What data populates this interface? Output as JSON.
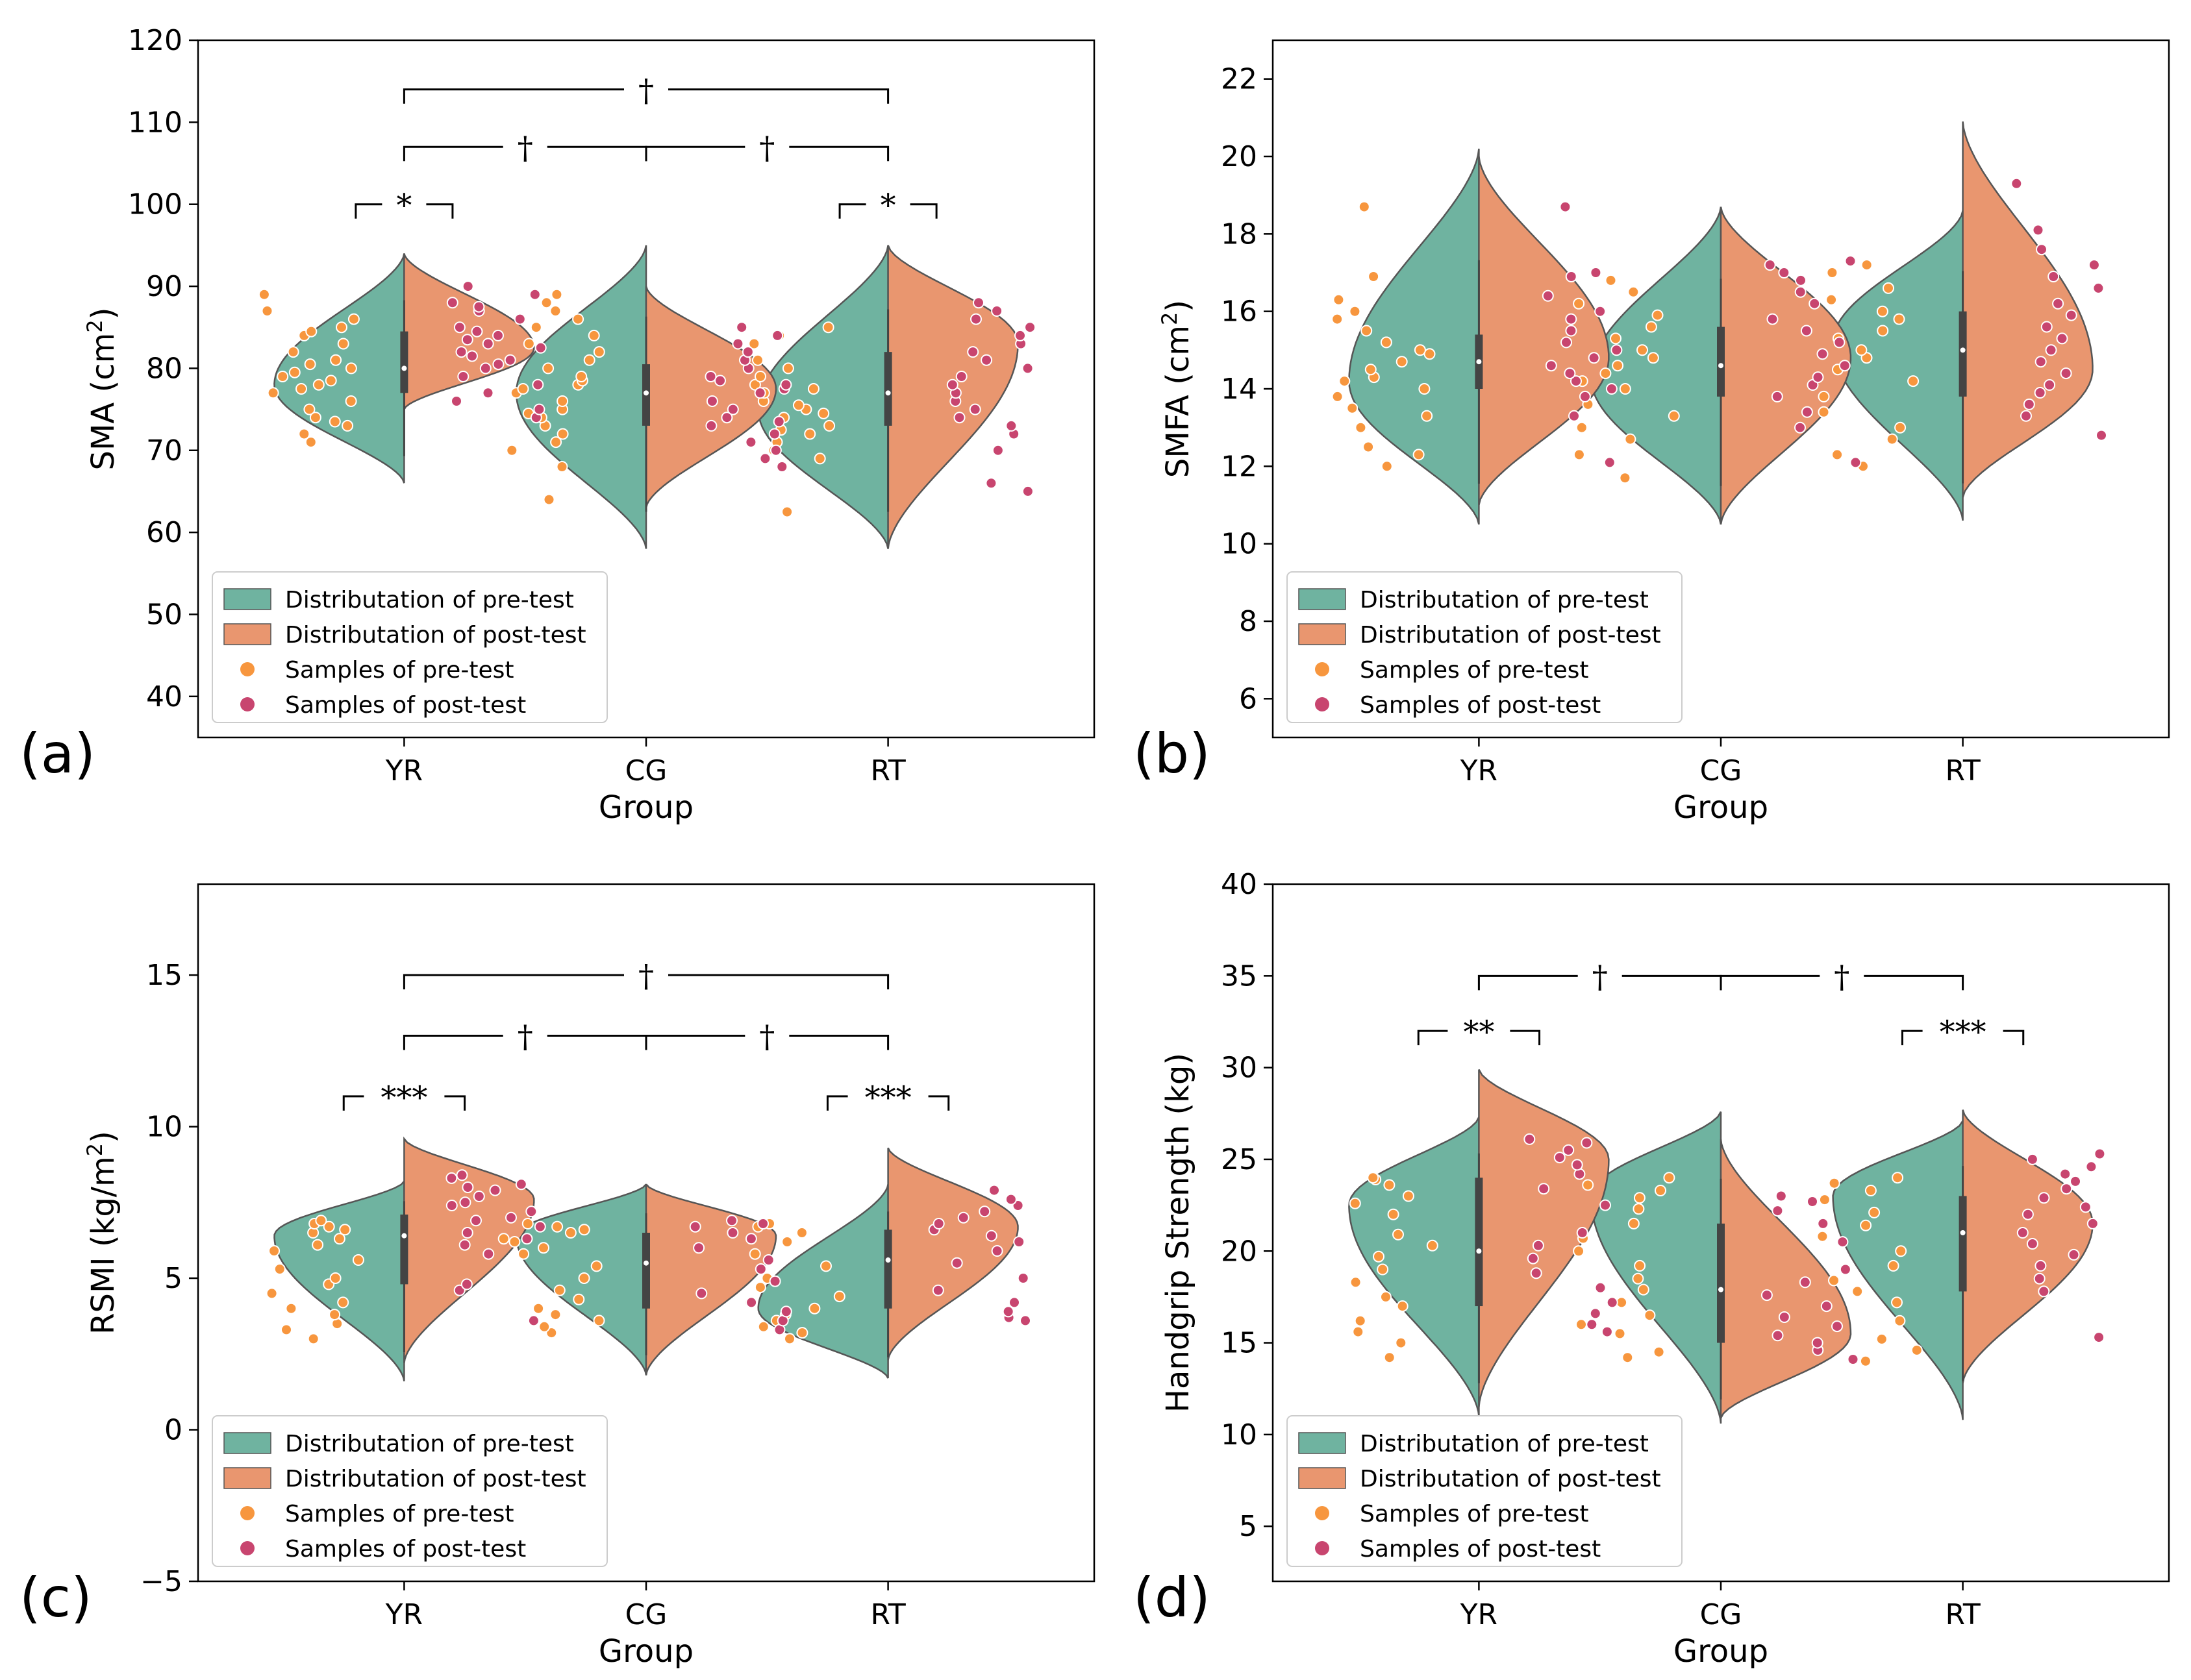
{
  "colors": {
    "pre": "#6fb3a0",
    "post": "#e9966f",
    "pre_dot": "#f7963e",
    "post_dot": "#c8456f",
    "edge": "#555555",
    "box": "#444444"
  },
  "legend": {
    "pre_dist": "Distributation of pre-test",
    "post_dist": "Distributation of post-test",
    "pre_samples": "Samples of pre-test",
    "post_samples": "Samples of post-test"
  },
  "chart_data": [
    {
      "type": "violin",
      "panel_label": "(a)",
      "xlabel": "Group",
      "ylabel_main": "SMA (cm",
      "ylabel_sup": "2",
      "ylabel_end": ")",
      "categories": [
        "YR",
        "CG",
        "RT"
      ],
      "ylim": [
        35,
        120
      ],
      "yticks": [
        40,
        50,
        60,
        70,
        80,
        90,
        100,
        110,
        120
      ],
      "legend_position": "lower-left",
      "series": [
        {
          "name": "pre-test",
          "groups": [
            {
              "min": 66,
              "max": 94,
              "peak": 78,
              "q1": 77,
              "median": 80,
              "q3": 84.5,
              "points": [
                71,
                72,
                73,
                73.5,
                74,
                75,
                76,
                77,
                77.5,
                78,
                78.5,
                79,
                79.5,
                80,
                80.5,
                81,
                82,
                83,
                84,
                84.5,
                85,
                86,
                87,
                89
              ]
            },
            {
              "min": 58,
              "max": 95,
              "peak": 77,
              "q1": 73,
              "median": 77,
              "q3": 80.5,
              "points": [
                64,
                68,
                70,
                71,
                72,
                73,
                74,
                74.5,
                75,
                76,
                77,
                77.5,
                78,
                78.5,
                79,
                80,
                81,
                82,
                83,
                84,
                85,
                86,
                87,
                88,
                89
              ]
            },
            {
              "min": 58,
              "max": 95,
              "peak": 75,
              "q1": 73,
              "median": 77,
              "q3": 82,
              "points": [
                62.5,
                69,
                70,
                71,
                72,
                72.5,
                73,
                74,
                74.5,
                75,
                75.5,
                76,
                77,
                77.5,
                78,
                79,
                80,
                81,
                83,
                84,
                85
              ]
            }
          ]
        },
        {
          "name": "post-test",
          "groups": [
            {
              "min": 75,
              "max": 94,
              "peak": 82.5,
              "q1": 77,
              "median": 80,
              "q3": 84.5,
              "points": [
                74,
                75,
                76,
                77,
                78,
                79,
                80,
                80.5,
                81,
                81.5,
                82,
                82.5,
                83,
                83.5,
                84,
                84.5,
                85,
                86,
                87,
                87.5,
                88,
                89,
                90
              ]
            },
            {
              "min": 63,
              "max": 90,
              "peak": 77.5,
              "q1": 73,
              "median": 77,
              "q3": 80.5,
              "points": [
                68,
                69,
                70,
                71,
                72,
                73,
                73.5,
                74,
                75,
                76,
                77,
                77.5,
                78,
                78.5,
                79,
                80,
                81,
                82,
                83,
                84,
                85
              ]
            },
            {
              "min": 58,
              "max": 95,
              "peak": 83,
              "q1": 73,
              "median": 77,
              "q3": 82,
              "points": [
                65,
                66,
                70,
                72,
                73,
                74,
                75,
                76,
                77,
                78,
                79,
                80,
                81,
                82,
                83,
                84,
                85,
                86,
                87,
                88
              ]
            }
          ]
        }
      ],
      "annotations": [
        {
          "x1": 0,
          "x2": 1,
          "y": 114,
          "label": "†"
        },
        {
          "x1": 0,
          "x2": 0.5,
          "y": 107,
          "label": "†"
        },
        {
          "x1": 0.5,
          "x2": 1,
          "y": 107,
          "label": "†"
        },
        {
          "x1": -0.1,
          "x2": 0.1,
          "y": 100,
          "label": "*"
        },
        {
          "x1": 0.9,
          "x2": 1.1,
          "y": 100,
          "label": "*"
        }
      ]
    },
    {
      "type": "violin",
      "panel_label": "(b)",
      "xlabel": "Group",
      "ylabel_main": "SMFA (cm",
      "ylabel_sup": "2",
      "ylabel_end": ")",
      "categories": [
        "YR",
        "CG",
        "RT"
      ],
      "ylim": [
        5,
        23
      ],
      "yticks": [
        6,
        8,
        10,
        12,
        14,
        16,
        18,
        20,
        22
      ],
      "legend_position": "lower-left",
      "series": [
        {
          "name": "pre-test",
          "groups": [
            {
              "min": 10.5,
              "max": 20.2,
              "peak": 14.2,
              "q1": 14.0,
              "median": 14.7,
              "q3": 15.4,
              "points": [
                12.0,
                12.3,
                12.5,
                13.0,
                13.3,
                13.5,
                13.8,
                14.0,
                14.2,
                14.3,
                14.5,
                14.7,
                14.9,
                15.0,
                15.2,
                15.5,
                15.8,
                16.0,
                16.3,
                16.9,
                18.7
              ]
            },
            {
              "min": 10.5,
              "max": 18.7,
              "peak": 14.3,
              "q1": 13.8,
              "median": 14.6,
              "q3": 15.6,
              "points": [
                11.7,
                12.3,
                12.7,
                13.0,
                13.3,
                13.6,
                14.0,
                14.2,
                14.4,
                14.6,
                14.8,
                15.0,
                15.3,
                15.6,
                15.9,
                16.2,
                16.5,
                16.8
              ]
            },
            {
              "min": 10.6,
              "max": 18.6,
              "peak": 15.2,
              "q1": 13.8,
              "median": 15.0,
              "q3": 16.0,
              "points": [
                12.0,
                12.3,
                12.7,
                13.0,
                13.4,
                13.8,
                14.2,
                14.5,
                14.8,
                15.0,
                15.3,
                15.5,
                15.8,
                16.0,
                16.3,
                16.6,
                17.0,
                17.2
              ]
            }
          ]
        },
        {
          "name": "post-test",
          "groups": [
            {
              "min": 11.0,
              "max": 20.0,
              "peak": 14.8,
              "q1": 14.0,
              "median": 14.7,
              "q3": 15.4,
              "points": [
                12.1,
                13.3,
                13.8,
                14.0,
                14.2,
                14.4,
                14.6,
                14.8,
                15.0,
                15.2,
                15.5,
                15.8,
                16.0,
                16.4,
                16.9,
                17.0,
                18.7
              ]
            },
            {
              "min": 10.5,
              "max": 18.7,
              "peak": 14.8,
              "q1": 13.8,
              "median": 14.6,
              "q3": 15.6,
              "points": [
                12.1,
                13.0,
                13.4,
                13.8,
                14.1,
                14.3,
                14.6,
                14.9,
                15.2,
                15.5,
                15.8,
                16.2,
                16.5,
                16.8,
                17.0,
                17.2,
                17.3
              ]
            },
            {
              "min": 11.2,
              "max": 20.9,
              "peak": 14.5,
              "q1": 13.8,
              "median": 15.0,
              "q3": 16.0,
              "points": [
                12.8,
                13.3,
                13.6,
                13.9,
                14.1,
                14.4,
                14.7,
                15.0,
                15.3,
                15.6,
                15.9,
                16.2,
                16.6,
                16.9,
                17.2,
                17.6,
                18.1,
                19.3
              ]
            }
          ]
        }
      ],
      "annotations": []
    },
    {
      "type": "violin",
      "panel_label": "(c)",
      "xlabel": "Group",
      "ylabel_main": "RSMI (kg/m",
      "ylabel_sup": "2",
      "ylabel_end": ")",
      "categories": [
        "YR",
        "CG",
        "RT"
      ],
      "ylim": [
        -5,
        18
      ],
      "yticks": [
        -5,
        0,
        5,
        10,
        15
      ],
      "legend_position": "lower-left",
      "series": [
        {
          "name": "pre-test",
          "groups": [
            {
              "min": 1.6,
              "max": 8.2,
              "peak": 6.4,
              "q1": 4.8,
              "median": 6.4,
              "q3": 7.1,
              "points": [
                3.0,
                3.3,
                3.5,
                3.8,
                4.0,
                4.2,
                4.5,
                4.8,
                5.0,
                5.3,
                5.6,
                5.9,
                6.1,
                6.3,
                6.5,
                6.6,
                6.7,
                6.8,
                6.9
              ]
            },
            {
              "min": 1.8,
              "max": 8.1,
              "peak": 6.4,
              "q1": 4.0,
              "median": 5.5,
              "q3": 6.5,
              "points": [
                3.2,
                3.4,
                3.6,
                3.8,
                4.0,
                4.3,
                4.6,
                5.0,
                5.4,
                5.8,
                6.0,
                6.2,
                6.3,
                6.5,
                6.6,
                6.7,
                6.8
              ]
            },
            {
              "min": 1.7,
              "max": 8.1,
              "peak": 4.0,
              "q1": 4.0,
              "median": 5.6,
              "q3": 6.6,
              "points": [
                3.0,
                3.2,
                3.4,
                3.6,
                3.8,
                4.0,
                4.2,
                4.4,
                4.7,
                5.0,
                5.4,
                5.8,
                6.2,
                6.5,
                6.7,
                6.8
              ]
            }
          ]
        },
        {
          "name": "post-test",
          "groups": [
            {
              "min": 2.2,
              "max": 9.6,
              "peak": 7.6,
              "q1": 4.8,
              "median": 6.4,
              "q3": 7.1,
              "points": [
                3.6,
                4.6,
                4.8,
                5.8,
                6.1,
                6.3,
                6.5,
                6.7,
                6.9,
                7.0,
                7.2,
                7.4,
                7.5,
                7.7,
                7.9,
                8.0,
                8.1,
                8.3,
                8.4
              ]
            },
            {
              "min": 1.8,
              "max": 8.1,
              "peak": 6.4,
              "q1": 4.0,
              "median": 5.5,
              "q3": 6.5,
              "points": [
                3.3,
                3.6,
                3.9,
                4.2,
                4.5,
                4.9,
                5.3,
                5.6,
                6.0,
                6.3,
                6.5,
                6.7,
                6.8,
                6.9
              ]
            },
            {
              "min": 2.3,
              "max": 9.3,
              "peak": 6.7,
              "q1": 4.0,
              "median": 5.6,
              "q3": 6.6,
              "points": [
                3.6,
                3.7,
                3.9,
                4.2,
                4.6,
                5.0,
                5.5,
                5.9,
                6.2,
                6.4,
                6.6,
                6.8,
                7.0,
                7.2,
                7.4,
                7.6,
                7.9
              ]
            }
          ]
        }
      ],
      "annotations": [
        {
          "x1": 0,
          "x2": 1,
          "y": 15,
          "label": "†"
        },
        {
          "x1": 0,
          "x2": 0.5,
          "y": 13,
          "label": "†"
        },
        {
          "x1": 0.5,
          "x2": 1,
          "y": 13,
          "label": "†"
        },
        {
          "x1": -0.125,
          "x2": 0.125,
          "y": 11,
          "label": "***"
        },
        {
          "x1": 0.875,
          "x2": 1.125,
          "y": 11,
          "label": "***"
        }
      ]
    },
    {
      "type": "violin",
      "panel_label": "(d)",
      "xlabel": "Group",
      "ylabel_main": "Handgrip Strength (kg)",
      "ylabel_sup": "",
      "ylabel_end": "",
      "categories": [
        "YR",
        "CG",
        "RT"
      ],
      "ylim": [
        2,
        40
      ],
      "yticks": [
        5,
        10,
        15,
        20,
        25,
        30,
        35,
        40
      ],
      "legend_position": "lower-left",
      "series": [
        {
          "name": "pre-test",
          "groups": [
            {
              "min": 11.0,
              "max": 27.3,
              "peak": 22.5,
              "q1": 17.0,
              "median": 20.0,
              "q3": 24.0,
              "points": [
                14.2,
                15.0,
                15.6,
                16.2,
                17.0,
                17.5,
                18.3,
                19.0,
                19.7,
                20.3,
                20.9,
                22.0,
                22.6,
                23.0,
                23.6,
                23.9,
                24.0
              ]
            },
            {
              "min": 10.6,
              "max": 27.6,
              "peak": 23.0,
              "q1": 15.0,
              "median": 17.9,
              "q3": 21.5,
              "points": [
                14.2,
                14.5,
                15.5,
                16.0,
                16.5,
                17.2,
                17.9,
                18.5,
                19.2,
                20.0,
                20.7,
                21.5,
                22.3,
                22.9,
                23.3,
                23.6,
                24.0
              ]
            },
            {
              "min": 10.8,
              "max": 27.1,
              "peak": 23.0,
              "q1": 17.8,
              "median": 21.0,
              "q3": 23.0,
              "points": [
                14.0,
                14.6,
                15.2,
                16.2,
                17.2,
                17.8,
                18.4,
                19.2,
                20.0,
                20.8,
                21.4,
                22.1,
                22.8,
                23.3,
                23.7,
                24.0
              ]
            }
          ]
        },
        {
          "name": "post-test",
          "groups": [
            {
              "min": 11.5,
              "max": 29.9,
              "peak": 25.0,
              "q1": 17.0,
              "median": 20.0,
              "q3": 24.0,
              "points": [
                15.6,
                16.0,
                16.6,
                17.2,
                18.0,
                18.8,
                19.6,
                20.3,
                21.0,
                22.5,
                23.4,
                24.2,
                24.7,
                25.1,
                25.5,
                25.9,
                26.1
              ]
            },
            {
              "min": 10.9,
              "max": 26.1,
              "peak": 15.5,
              "q1": 15.0,
              "median": 17.9,
              "q3": 21.5,
              "points": [
                14.1,
                14.6,
                15.0,
                15.4,
                15.9,
                16.4,
                17.0,
                17.6,
                18.3,
                19.0,
                20.5,
                21.5,
                22.2,
                22.7,
                23.0
              ]
            },
            {
              "min": 12.8,
              "max": 27.7,
              "peak": 21.5,
              "q1": 17.8,
              "median": 21.0,
              "q3": 23.0,
              "points": [
                15.3,
                17.8,
                18.5,
                19.2,
                19.8,
                20.4,
                21.0,
                21.5,
                22.0,
                22.4,
                22.9,
                23.4,
                23.8,
                24.2,
                24.6,
                25.0,
                25.3
              ]
            }
          ]
        }
      ],
      "annotations": [
        {
          "x1": 0,
          "x2": 0.5,
          "y": 35,
          "label": "†"
        },
        {
          "x1": 0.5,
          "x2": 1,
          "y": 35,
          "label": "†"
        },
        {
          "x1": -0.125,
          "x2": 0.125,
          "y": 32,
          "label": "**"
        },
        {
          "x1": 0.875,
          "x2": 1.125,
          "y": 32,
          "label": "***"
        }
      ]
    }
  ]
}
